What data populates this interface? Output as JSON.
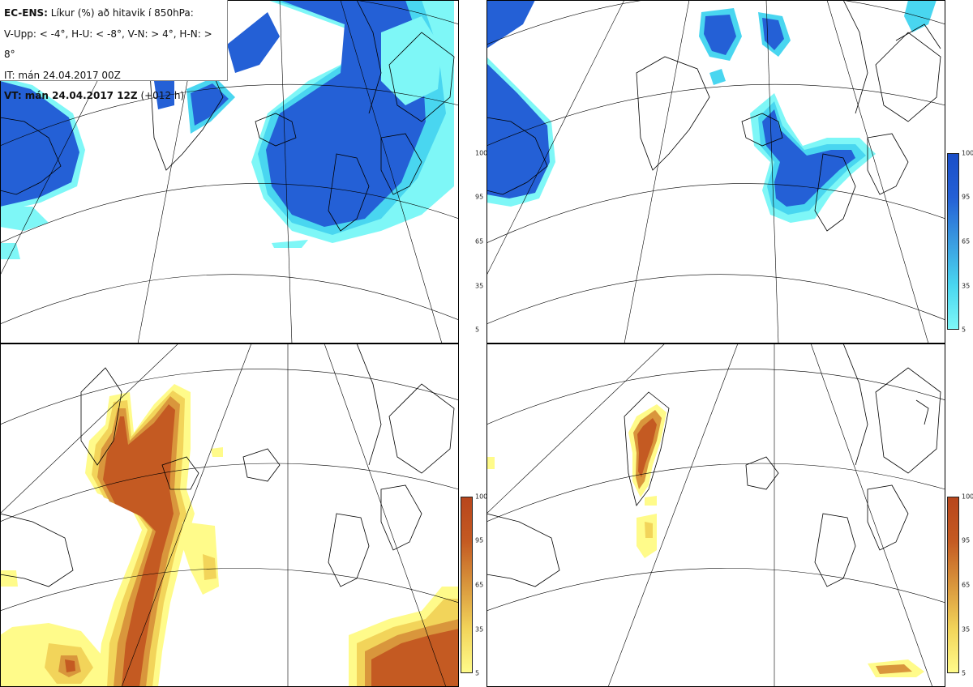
{
  "legend": {
    "model": "EC-ENS:",
    "title": "Líkur (%) að hitavik í 850hPa:",
    "thresholds": "V-Upp: < -4°, H-U: < -8°, V-N: > 4°, H-N: > 8°",
    "issue_time": "IT: mán 24.04.2017 00Z",
    "valid_label": "VT: mán 24.04.2017 12Z",
    "valid_offset": "(+012 h)"
  },
  "colorbar_ticks": [
    "100",
    "95",
    "65",
    "35",
    "5"
  ],
  "colors": {
    "cold_scale": [
      "#7ef7f7",
      "#49d6f0",
      "#3a9be0",
      "#2460d6",
      "#1a4ec8"
    ],
    "warm_scale": [
      "#fffb8a",
      "#f2d45a",
      "#d9963c",
      "#c45a22",
      "#b8461c"
    ],
    "land_line": "#000000",
    "grid_line": "#000000"
  },
  "panels": [
    {
      "name": "cold-moderate",
      "quadrant": "top-left",
      "scale": "cold"
    },
    {
      "name": "cold-strong",
      "quadrant": "top-right",
      "scale": "cold"
    },
    {
      "name": "warm-moderate",
      "quadrant": "bottom-left",
      "scale": "warm"
    },
    {
      "name": "warm-strong",
      "quadrant": "bottom-right",
      "scale": "warm"
    }
  ]
}
